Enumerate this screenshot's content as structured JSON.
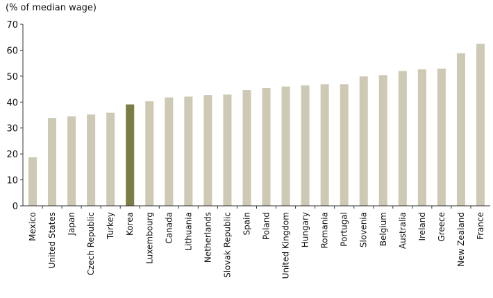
{
  "chart_data": {
    "type": "bar",
    "ylabel": "(% of median wage)",
    "ylim": [
      0,
      70
    ],
    "yticks": [
      0,
      10,
      20,
      30,
      40,
      50,
      60,
      70
    ],
    "grid": false,
    "categories": [
      "Mexico",
      "United States",
      "Japan",
      "Czech Republic",
      "Turkey",
      "Korea",
      "Luxembourg",
      "Canada",
      "Lithuania",
      "Netherlands",
      "Slovak Republic",
      "Spain",
      "Poland",
      "United Kingdom",
      "Hungary",
      "Romania",
      "Portugal",
      "Slovenia",
      "Belgium",
      "Australia",
      "Ireland",
      "Greece",
      "New Zealand",
      "France"
    ],
    "values": [
      18.7,
      33.9,
      34.5,
      35.2,
      35.9,
      39.1,
      40.3,
      41.8,
      42.1,
      42.7,
      42.9,
      44.6,
      45.4,
      46.0,
      46.4,
      46.9,
      46.9,
      49.9,
      50.4,
      52.0,
      52.6,
      52.9,
      58.8,
      62.5
    ],
    "highlight": "Korea",
    "colors": {
      "bar": "#cdc9b5",
      "highlight": "#7b7d45",
      "axis": "#333333"
    }
  }
}
